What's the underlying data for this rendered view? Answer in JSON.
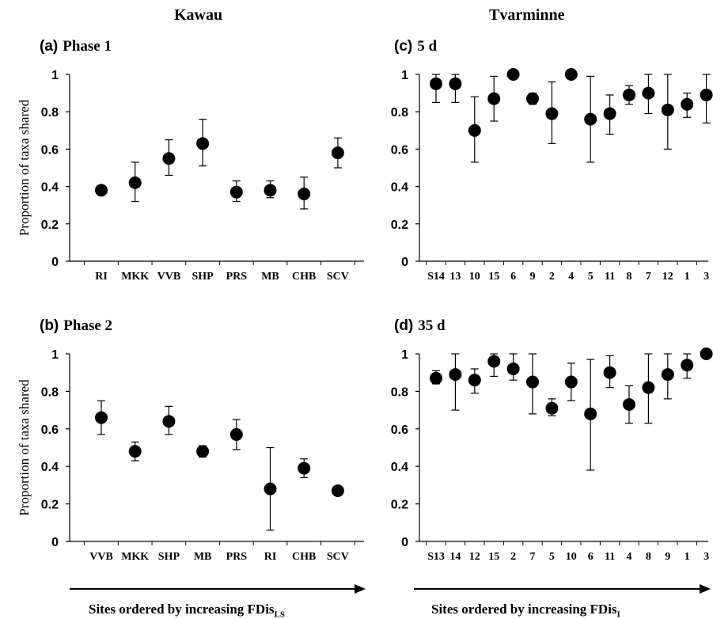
{
  "column_titles": {
    "left": "Kawau",
    "right": "Tvarminne"
  },
  "bottom_labels": {
    "left": {
      "text": "Sites ordered by increasing  FDis",
      "sub": "LS"
    },
    "right": {
      "text": "Sites ordered by increasing  FDis",
      "sub": "I"
    }
  },
  "chart_data": [
    {
      "id": "a",
      "type": "scatter",
      "panel_letter": "(a)",
      "title": "Phase 1",
      "ylabel": "Proportion of taxa shared",
      "ylim": [
        0,
        1
      ],
      "yticks": [
        "0",
        "0.2",
        "0.4",
        "0.6",
        "0.8",
        "1"
      ],
      "categories": [
        "RI",
        "MKK",
        "VVB",
        "SHP",
        "PRS",
        "MB",
        "CHB",
        "SCV"
      ],
      "values": [
        0.38,
        0.42,
        0.55,
        0.63,
        0.37,
        0.38,
        0.36,
        0.58
      ],
      "err_low": [
        0.38,
        0.32,
        0.46,
        0.51,
        0.32,
        0.34,
        0.28,
        0.5
      ],
      "err_high": [
        0.38,
        0.53,
        0.65,
        0.76,
        0.43,
        0.43,
        0.45,
        0.66
      ]
    },
    {
      "id": "b",
      "type": "scatter",
      "panel_letter": "(b)",
      "title": "Phase 2",
      "ylabel": "Proportion of taxa shared",
      "ylim": [
        0,
        1
      ],
      "yticks": [
        "0",
        "0.2",
        "0.4",
        "0.6",
        "0.8",
        "1"
      ],
      "categories": [
        "VVB",
        "MKK",
        "SHP",
        "MB",
        "PRS",
        "RI",
        "CHB",
        "SCV"
      ],
      "values": [
        0.66,
        0.48,
        0.64,
        0.48,
        0.57,
        0.28,
        0.39,
        0.27
      ],
      "err_low": [
        0.57,
        0.43,
        0.57,
        0.45,
        0.49,
        0.06,
        0.34,
        0.27
      ],
      "err_high": [
        0.75,
        0.53,
        0.72,
        0.51,
        0.65,
        0.5,
        0.44,
        0.27
      ]
    },
    {
      "id": "c",
      "type": "scatter",
      "panel_letter": "(c)",
      "title": "5 d",
      "ylabel": "",
      "ylim": [
        0,
        1
      ],
      "yticks": [
        "0",
        "0.2",
        "0.4",
        "0.6",
        "0.8",
        "1"
      ],
      "categories": [
        "S14",
        "13",
        "10",
        "15",
        "6",
        "9",
        "2",
        "4",
        "5",
        "11",
        "8",
        "7",
        "12",
        "1",
        "3"
      ],
      "values": [
        0.95,
        0.95,
        0.7,
        0.87,
        1.0,
        0.87,
        0.79,
        1.0,
        0.76,
        0.79,
        0.89,
        0.9,
        0.81,
        0.84,
        0.89
      ],
      "err_low": [
        0.85,
        0.85,
        0.53,
        0.75,
        1.0,
        0.84,
        0.63,
        1.0,
        0.53,
        0.68,
        0.84,
        0.79,
        0.6,
        0.77,
        0.74
      ],
      "err_high": [
        1.0,
        1.0,
        0.88,
        0.99,
        1.0,
        0.9,
        0.96,
        1.0,
        0.99,
        0.89,
        0.94,
        1.0,
        1.0,
        0.9,
        1.0
      ]
    },
    {
      "id": "d",
      "type": "scatter",
      "panel_letter": "(d)",
      "title": "35 d",
      "ylabel": "",
      "ylim": [
        0,
        1
      ],
      "yticks": [
        "0",
        "0.2",
        "0.4",
        "0.6",
        "0.8",
        "1"
      ],
      "categories": [
        "S13",
        "14",
        "12",
        "15",
        "2",
        "7",
        "5",
        "10",
        "6",
        "11",
        "4",
        "8",
        "9",
        "1",
        "3"
      ],
      "values": [
        0.87,
        0.89,
        0.86,
        0.96,
        0.92,
        0.85,
        0.71,
        0.85,
        0.68,
        0.9,
        0.73,
        0.82,
        0.89,
        0.94,
        1.0
      ],
      "err_low": [
        0.84,
        0.7,
        0.79,
        0.88,
        0.86,
        0.68,
        0.67,
        0.75,
        0.38,
        0.82,
        0.63,
        0.63,
        0.76,
        0.87,
        1.0
      ],
      "err_high": [
        0.91,
        1.0,
        0.92,
        1.0,
        1.0,
        1.0,
        0.76,
        0.95,
        0.97,
        0.99,
        0.83,
        1.0,
        1.0,
        1.0,
        1.0
      ]
    }
  ]
}
